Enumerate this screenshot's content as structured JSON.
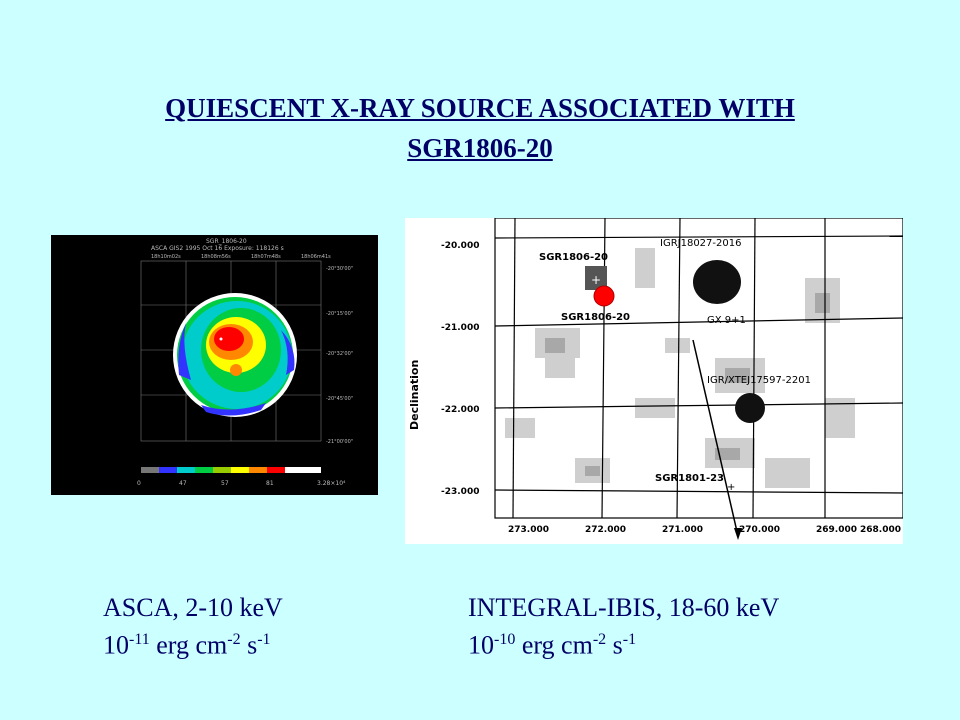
{
  "title": {
    "line1": "QUIESCENT X-RAY SOURCE ASSOCIATED WITH",
    "line2": "SGR1806-20"
  },
  "asca_image": {
    "header1": "SGR_1806-20",
    "header2": "ASCA GIS2   1995 Oct 16   Exposure: 118126 s",
    "ra_ticks": [
      "18h10m02s",
      "18h08m56s",
      "18h07m48s",
      "18h06m41s"
    ],
    "dec_ticks": [
      "-20°30'00\"",
      "-20°15'00\"",
      "-20°32'00\"",
      "-20°45'00\"",
      "-21°00'00\""
    ],
    "colorbar_labels": [
      "0",
      "47",
      "57",
      "81",
      "3.28×10⁴"
    ],
    "colors": [
      "#3333ff",
      "#00cccc",
      "#00cc44",
      "#ffff00",
      "#ff8800",
      "#ff0000",
      "#ffffff"
    ]
  },
  "integral_image": {
    "ylabel": "Declination",
    "dec_ticks": [
      "-20.000",
      "-21.000",
      "-22.000",
      "-23.000"
    ],
    "ra_ticks": [
      "273.000",
      "272.000",
      "271.000",
      "270.000",
      "269.000",
      "268.000"
    ],
    "labels": {
      "sgr1806_top": "SGR1806-20",
      "sgr1806_bottom": "SGR1806-20",
      "igrj18027": "IGRJ18027-2016",
      "gx9": "GX 9+1",
      "igrxte": "IGR/XTEJ17597-2201",
      "sgr1801": "SGR1801-23"
    },
    "marker_color": "#ff0000"
  },
  "captions": {
    "left": {
      "instrument": "ASCA, 2-10 keV",
      "flux_base": "10",
      "flux_exp": "-11",
      "unit_erg": " erg cm",
      "unit_cm_exp": "-2",
      "unit_s": " s",
      "unit_s_exp": "-1"
    },
    "right": {
      "instrument": "INTEGRAL-IBIS, 18-60 keV",
      "flux_base": "10",
      "flux_exp": "-10",
      "unit_erg": " erg cm",
      "unit_cm_exp": "-2",
      "unit_s": " s",
      "unit_s_exp": "-1"
    }
  }
}
